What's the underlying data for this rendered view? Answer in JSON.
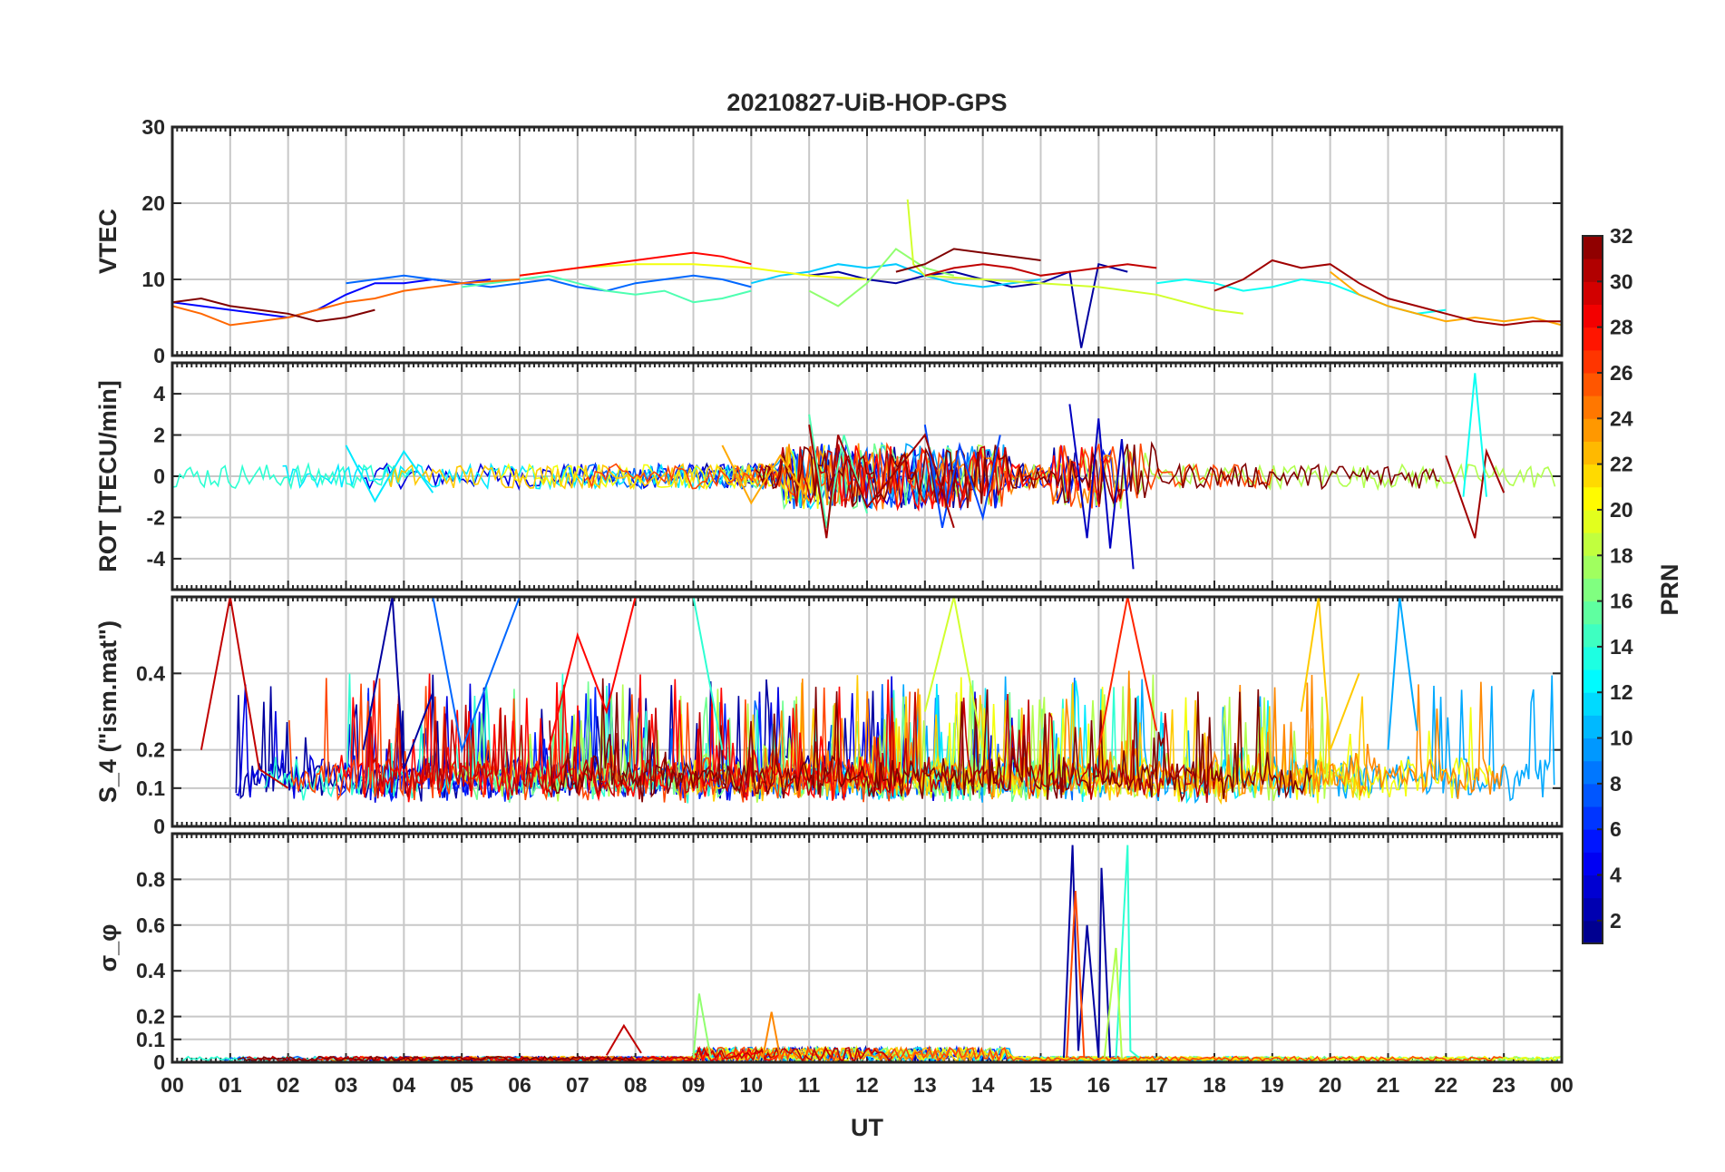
{
  "chart_data": {
    "type": "line",
    "title": "20210827-UiB-HOP-GPS",
    "xlabel": "UT",
    "x_ticks": [
      "00",
      "01",
      "02",
      "03",
      "04",
      "05",
      "06",
      "07",
      "08",
      "09",
      "10",
      "11",
      "12",
      "13",
      "14",
      "15",
      "16",
      "17",
      "18",
      "19",
      "20",
      "21",
      "22",
      "23",
      "00"
    ],
    "xlim": [
      0,
      24
    ],
    "colorbar": {
      "label": "PRN",
      "range": [
        1,
        32
      ],
      "ticks": [
        "2",
        "4",
        "6",
        "8",
        "10",
        "12",
        "14",
        "16",
        "18",
        "20",
        "22",
        "24",
        "26",
        "28",
        "30",
        "32"
      ]
    },
    "panels": [
      {
        "name": "vtec",
        "ylabel": "VTEC",
        "ylim": [
          0,
          30
        ],
        "yticks": [
          "0",
          "10",
          "20",
          "30"
        ],
        "series": [
          {
            "prn": 2,
            "x": [
              11.0,
              11.5,
              12.0,
              12.5,
              13.0,
              13.5,
              14.0,
              14.5,
              15.0,
              15.5,
              15.7,
              16.0,
              16.5
            ],
            "y": [
              10.5,
              11.0,
              10.0,
              9.5,
              10.5,
              11.0,
              10.0,
              9.0,
              9.5,
              11.0,
              1.0,
              12.0,
              11.0
            ]
          },
          {
            "prn": 5,
            "x": [
              0,
              0.5,
              1,
              1.5,
              2,
              2.5,
              3,
              3.5,
              4,
              4.5,
              5,
              5.5
            ],
            "y": [
              7.0,
              6.5,
              6.0,
              5.5,
              5.0,
              6.0,
              8.0,
              9.5,
              9.5,
              10.0,
              9.5,
              10.0
            ]
          },
          {
            "prn": 8,
            "x": [
              3,
              3.5,
              4,
              4.5,
              5,
              5.5,
              6,
              6.5,
              7,
              7.5,
              8,
              8.5,
              9,
              9.5,
              10
            ],
            "y": [
              9.5,
              10.0,
              10.5,
              10.0,
              9.5,
              9.0,
              9.5,
              10.0,
              9.0,
              8.5,
              9.5,
              10.0,
              10.5,
              10.0,
              9.0
            ]
          },
          {
            "prn": 11,
            "x": [
              10,
              10.5,
              11,
              11.5,
              12,
              12.5,
              13,
              13.5,
              14,
              14.5,
              15
            ],
            "y": [
              9.5,
              10.5,
              11.0,
              12.0,
              11.5,
              12.0,
              10.5,
              9.5,
              9.0,
              9.5,
              10.0
            ]
          },
          {
            "prn": 13,
            "x": [
              17,
              17.5,
              18,
              18.5,
              19,
              19.5,
              20,
              20.5,
              21,
              21.5,
              22
            ],
            "y": [
              9.5,
              10.0,
              9.5,
              8.5,
              9.0,
              10.0,
              9.5,
              8.0,
              6.5,
              5.5,
              6.0
            ]
          },
          {
            "prn": 15,
            "x": [
              5,
              5.5,
              6,
              6.5,
              7,
              7.5,
              8,
              8.5,
              9,
              9.5,
              10
            ],
            "y": [
              9.0,
              9.5,
              10.0,
              10.5,
              9.5,
              8.5,
              8.0,
              8.5,
              7.0,
              7.5,
              8.5
            ]
          },
          {
            "prn": 17,
            "x": [
              11,
              11.5,
              12,
              12.5,
              13,
              13.5
            ],
            "y": [
              8.5,
              6.5,
              9.5,
              14.0,
              11.5,
              10.5
            ]
          },
          {
            "prn": 19,
            "x": [
              12.7,
              12.8,
              13.0,
              14,
              15,
              16,
              17,
              18,
              18.5
            ],
            "y": [
              20.5,
              12.0,
              10.5,
              10.0,
              9.5,
              9.0,
              8.0,
              6.0,
              5.5
            ]
          },
          {
            "prn": 20,
            "x": [
              6,
              7,
              8,
              9,
              10,
              11,
              12
            ],
            "y": [
              10.5,
              11.5,
              12.0,
              12.0,
              11.5,
              10.5,
              10.0
            ]
          },
          {
            "prn": 23,
            "x": [
              20,
              20.5,
              21,
              21.5,
              22,
              22.5,
              23,
              23.5,
              24
            ],
            "y": [
              11.0,
              8.0,
              6.5,
              5.5,
              4.5,
              5.0,
              4.5,
              5.0,
              4.0
            ]
          },
          {
            "prn": 25,
            "x": [
              0,
              0.5,
              1,
              1.5,
              2,
              2.5,
              3,
              3.5,
              4,
              5,
              6
            ],
            "y": [
              6.5,
              5.5,
              4.0,
              4.5,
              5.0,
              6.0,
              7.0,
              7.5,
              8.5,
              9.5,
              10.0
            ]
          },
          {
            "prn": 28,
            "x": [
              6,
              6.5,
              7,
              7.5,
              8,
              8.5,
              9,
              9.5,
              10
            ],
            "y": [
              10.5,
              11.0,
              11.5,
              12.0,
              12.5,
              13.0,
              13.5,
              13.0,
              12.0
            ]
          },
          {
            "prn": 30,
            "x": [
              13,
              13.5,
              14,
              14.5,
              15,
              15.5,
              16,
              16.5,
              17
            ],
            "y": [
              10.5,
              11.5,
              12.0,
              11.5,
              10.5,
              11.0,
              11.5,
              12.0,
              11.5
            ]
          },
          {
            "prn": 31,
            "x": [
              18,
              18.5,
              19,
              19.5,
              20,
              20.5,
              21,
              21.5,
              22,
              22.5,
              23,
              23.5,
              24
            ],
            "y": [
              8.5,
              10.0,
              12.5,
              11.5,
              12.0,
              9.5,
              7.5,
              6.5,
              5.5,
              4.5,
              4.0,
              4.5,
              4.5
            ]
          },
          {
            "prn": 32,
            "x": [
              0,
              0.5,
              1,
              1.5,
              2,
              2.5,
              3,
              3.5
            ],
            "y": [
              7.0,
              7.5,
              6.5,
              6.0,
              5.5,
              4.5,
              5.0,
              6.0
            ]
          },
          {
            "prn": 32,
            "x": [
              12.5,
              13.0,
              13.5,
              14,
              14.5,
              15
            ],
            "y": [
              11.0,
              12.0,
              14.0,
              13.5,
              13.0,
              12.5
            ]
          }
        ]
      },
      {
        "name": "rot",
        "ylabel": "ROT [TECU/min]",
        "ylim": [
          -5.5,
          5.5
        ],
        "yticks": [
          "-4",
          "-2",
          "0",
          "2",
          "4"
        ],
        "series": [
          {
            "prn": 3,
            "x": [
              15.5,
              15.8,
              16.0,
              16.2,
              16.4,
              16.6
            ],
            "y": [
              3.5,
              -3.0,
              2.8,
              -3.5,
              1.8,
              -4.5
            ]
          },
          {
            "prn": 7,
            "x": [
              13.0,
              13.3,
              13.6,
              14.0,
              14.3
            ],
            "y": [
              2.5,
              -2.5,
              1.5,
              -2.0,
              2.0
            ]
          },
          {
            "prn": 12,
            "x": [
              3.0,
              3.5,
              4.0,
              4.5
            ],
            "y": [
              1.5,
              -1.2,
              1.2,
              -0.8
            ]
          },
          {
            "prn": 15,
            "x": [
              11.0,
              11.3,
              11.6,
              12.0
            ],
            "y": [
              3.0,
              -2.5,
              2.0,
              -1.8
            ]
          },
          {
            "prn": 23,
            "x": [
              9.5,
              10.0,
              10.5,
              11.0
            ],
            "y": [
              1.5,
              -1.3,
              1.0,
              -1.2
            ]
          },
          {
            "prn": 31,
            "x": [
              11.0,
              11.3,
              11.5,
              12.0,
              13.0,
              13.5
            ],
            "y": [
              2.5,
              -3.0,
              2.0,
              -1.5,
              2.0,
              -2.5
            ]
          },
          {
            "prn": 31,
            "x": [
              22.0,
              22.5,
              22.7,
              23.0
            ],
            "y": [
              1.0,
              -3.0,
              1.2,
              -0.8
            ]
          },
          {
            "prn": 13,
            "x": [
              22.3,
              22.5,
              22.7
            ],
            "y": [
              -1.0,
              5.0,
              -1.0
            ]
          }
        ]
      },
      {
        "name": "s4",
        "ylabel": "S_4 (\"ism.mat\")",
        "ylim": [
          0,
          0.6
        ],
        "yticks": [
          "0",
          "0.1",
          "0.2",
          "0.4"
        ],
        "series": [
          {
            "prn": 2,
            "x": [
              3.3,
              3.8,
              4.0,
              4.5
            ],
            "y": [
              0.2,
              0.6,
              0.15,
              0.35
            ]
          },
          {
            "prn": 8,
            "x": [
              4.5,
              5.0,
              5.5,
              6.0
            ],
            "y": [
              0.6,
              0.2,
              0.4,
              0.6
            ]
          },
          {
            "prn": 28,
            "x": [
              6.5,
              7.0,
              7.5,
              8.0
            ],
            "y": [
              0.2,
              0.5,
              0.3,
              0.6
            ]
          },
          {
            "prn": 30,
            "x": [
              0.5,
              1.0,
              1.5,
              2.0
            ],
            "y": [
              0.2,
              0.6,
              0.15,
              0.1
            ]
          },
          {
            "prn": 14,
            "x": [
              9.0,
              9.5
            ],
            "y": [
              0.6,
              0.2
            ]
          },
          {
            "prn": 27,
            "x": [
              16.0,
              16.5,
              17.0
            ],
            "y": [
              0.2,
              0.6,
              0.25
            ]
          },
          {
            "prn": 22,
            "x": [
              19.5,
              19.8,
              20.0,
              20.5
            ],
            "y": [
              0.3,
              0.6,
              0.2,
              0.4
            ]
          },
          {
            "prn": 10,
            "x": [
              21.0,
              21.2,
              21.5
            ],
            "y": [
              0.2,
              0.6,
              0.25
            ]
          },
          {
            "prn": 19,
            "x": [
              13.0,
              13.5,
              14.0
            ],
            "y": [
              0.3,
              0.6,
              0.2
            ]
          }
        ]
      },
      {
        "name": "sigma",
        "ylabel": "σ_φ",
        "ylim": [
          0,
          1
        ],
        "yticks": [
          "0",
          "0.1",
          "0.2",
          "0.4",
          "0.6",
          "0.8"
        ],
        "series": [
          {
            "prn": 2,
            "x": [
              15.4,
              15.55,
              15.65,
              15.8,
              16.0,
              16.05,
              16.2
            ],
            "y": [
              0.02,
              0.95,
              0.05,
              0.6,
              0.02,
              0.85,
              0.02
            ]
          },
          {
            "prn": 14,
            "x": [
              16.3,
              16.5,
              16.55,
              16.7
            ],
            "y": [
              0.02,
              0.95,
              0.05,
              0.02
            ]
          },
          {
            "prn": 26,
            "x": [
              15.45,
              15.6,
              15.75
            ],
            "y": [
              0.02,
              0.75,
              0.02
            ]
          },
          {
            "prn": 18,
            "x": [
              16.1,
              16.3,
              16.4
            ],
            "y": [
              0.02,
              0.5,
              0.02
            ]
          },
          {
            "prn": 17,
            "x": [
              9.0,
              9.1,
              9.3
            ],
            "y": [
              0.02,
              0.3,
              0.02
            ]
          },
          {
            "prn": 24,
            "x": [
              10.2,
              10.35,
              10.5
            ],
            "y": [
              0.02,
              0.22,
              0.02
            ]
          },
          {
            "prn": 30,
            "x": [
              7.5,
              7.8,
              8.1
            ],
            "y": [
              0.03,
              0.16,
              0.04
            ]
          }
        ]
      }
    ]
  }
}
